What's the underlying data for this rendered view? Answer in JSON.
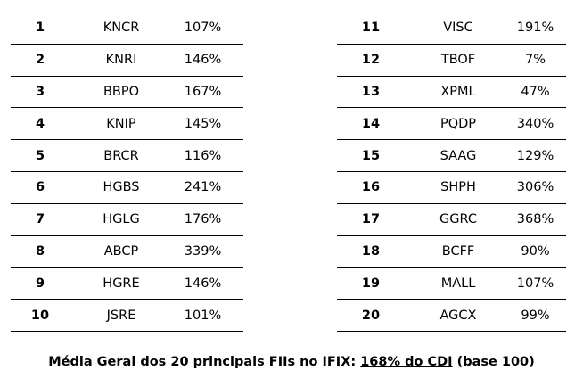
{
  "tables": {
    "left": [
      {
        "rank": "1",
        "ticker": "KNCR",
        "pct": "107%"
      },
      {
        "rank": "2",
        "ticker": "KNRI",
        "pct": "146%"
      },
      {
        "rank": "3",
        "ticker": "BBPO",
        "pct": "167%"
      },
      {
        "rank": "4",
        "ticker": "KNIP",
        "pct": "145%"
      },
      {
        "rank": "5",
        "ticker": "BRCR",
        "pct": "116%"
      },
      {
        "rank": "6",
        "ticker": "HGBS",
        "pct": "241%"
      },
      {
        "rank": "7",
        "ticker": "HGLG",
        "pct": "176%"
      },
      {
        "rank": "8",
        "ticker": "ABCP",
        "pct": "339%"
      },
      {
        "rank": "9",
        "ticker": "HGRE",
        "pct": "146%"
      },
      {
        "rank": "10",
        "ticker": "JSRE",
        "pct": "101%"
      }
    ],
    "right": [
      {
        "rank": "11",
        "ticker": "VISC",
        "pct": "191%"
      },
      {
        "rank": "12",
        "ticker": "TBOF",
        "pct": "7%"
      },
      {
        "rank": "13",
        "ticker": "XPML",
        "pct": "47%"
      },
      {
        "rank": "14",
        "ticker": "PQDP",
        "pct": "340%"
      },
      {
        "rank": "15",
        "ticker": "SAAG",
        "pct": "129%"
      },
      {
        "rank": "16",
        "ticker": "SHPH",
        "pct": "306%"
      },
      {
        "rank": "17",
        "ticker": "GGRC",
        "pct": "368%"
      },
      {
        "rank": "18",
        "ticker": "BCFF",
        "pct": "90%"
      },
      {
        "rank": "19",
        "ticker": "MALL",
        "pct": "107%"
      },
      {
        "rank": "20",
        "ticker": "AGCX",
        "pct": "99%"
      }
    ]
  },
  "summary": {
    "prefix": "Média Geral dos 20 principais FIIs no IFIX: ",
    "highlight": "168% do CDI",
    "suffix": " (base 100)"
  }
}
